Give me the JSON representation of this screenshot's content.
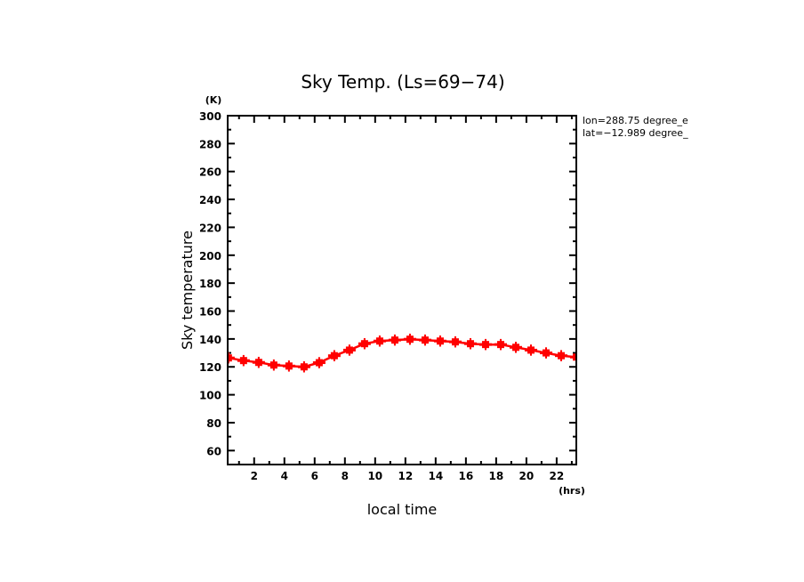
{
  "chart_data": {
    "type": "line",
    "title": "Sky Temp. (Ls=69−74)",
    "xlabel": "local time",
    "ylabel": "Sky temperature",
    "x_unit": "(hrs)",
    "y_unit": "(K)",
    "xlim": [
      0.25,
      23.3
    ],
    "ylim": [
      50,
      300
    ],
    "x_ticks": [
      2,
      4,
      6,
      8,
      10,
      12,
      14,
      16,
      18,
      20,
      22
    ],
    "x_tick_labels": [
      "2",
      "4",
      "6",
      "8",
      "10",
      "12",
      "14",
      "16",
      "18",
      "20",
      "22"
    ],
    "x_minor_step": 1,
    "y_ticks": [
      60,
      80,
      100,
      120,
      140,
      160,
      180,
      200,
      220,
      240,
      260,
      280,
      300
    ],
    "y_tick_labels": [
      "60",
      "80",
      "100",
      "120",
      "140",
      "160",
      "180",
      "200",
      "220",
      "240",
      "260",
      "280",
      "300"
    ],
    "y_minor_step": 10,
    "grid": false,
    "legend": "none",
    "annotations": [
      "lon=288.75 degree_e",
      "lat=−12.989 degree_"
    ],
    "series": [
      {
        "name": "Sky temperature",
        "color": "#ff0000",
        "marker": "square-with-errorbars",
        "x": [
          0.3,
          1.3,
          2.3,
          3.3,
          4.3,
          5.3,
          6.3,
          7.3,
          8.3,
          9.3,
          10.3,
          11.3,
          12.3,
          13.3,
          14.3,
          15.3,
          16.3,
          17.3,
          18.3,
          19.3,
          20.3,
          21.3,
          22.3,
          23.3
        ],
        "values": [
          126.4,
          124.5,
          123.2,
          121.3,
          120.6,
          120.0,
          123.0,
          128.0,
          132.0,
          136.6,
          138.5,
          139.2,
          139.8,
          139.2,
          138.5,
          137.9,
          136.6,
          136.0,
          136.0,
          134.0,
          132.0,
          130.0,
          128.0,
          127.0
        ],
        "error": [
          4,
          4,
          4,
          4,
          4,
          4,
          4,
          4,
          4,
          4,
          4,
          4,
          4,
          4,
          4,
          4,
          4,
          4,
          4,
          4,
          4,
          4,
          4,
          4
        ]
      }
    ]
  }
}
